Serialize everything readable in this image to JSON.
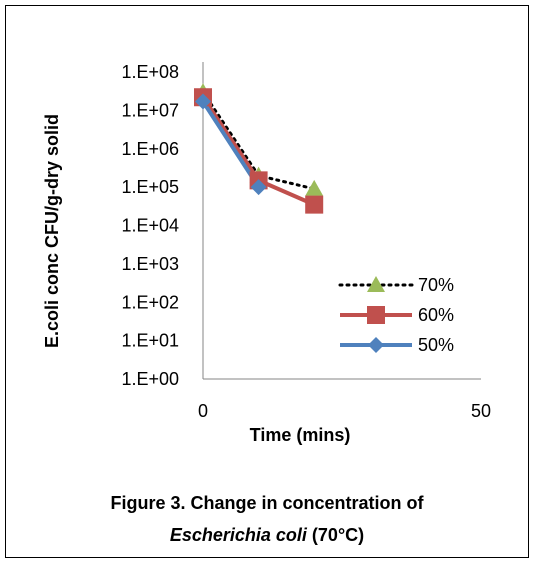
{
  "chart_data": {
    "type": "line",
    "ylabel": "E.coli conc CFU/g-dry solid",
    "xlabel": "Time (mins)",
    "y_scale": "log",
    "ylim": [
      1,
      100000000
    ],
    "xlim": [
      0,
      50
    ],
    "x_ticks": [
      "0",
      "50"
    ],
    "y_ticks": [
      "1.E+00",
      "1.E+01",
      "1.E+02",
      "1.E+03",
      "1.E+04",
      "1.E+05",
      "1.E+06",
      "1.E+07",
      "1.E+08"
    ],
    "grid": false,
    "legend_position": "right",
    "series": [
      {
        "name": "70%",
        "x": [
          0,
          10,
          20
        ],
        "y": [
          30000000,
          200000,
          90000
        ],
        "color": "#9bbb59",
        "line": "dotted",
        "line_color": "#000000",
        "marker": "triangle"
      },
      {
        "name": "60%",
        "x": [
          0,
          10,
          20
        ],
        "y": [
          22000000,
          150000,
          35000
        ],
        "color": "#c0504d",
        "line": "solid",
        "line_color": "#c0504d",
        "marker": "square"
      },
      {
        "name": "50%",
        "x": [
          0,
          10,
          20
        ],
        "y": [
          17000000,
          100000,
          null
        ],
        "color": "#4f81bd",
        "line": "solid",
        "line_color": "#4f81bd",
        "marker": "diamond"
      }
    ]
  },
  "caption": {
    "line1": "Figure 3. Change in concentration of",
    "line2_species": "Escherichia coli",
    "line2_rest": " (70°C)"
  }
}
